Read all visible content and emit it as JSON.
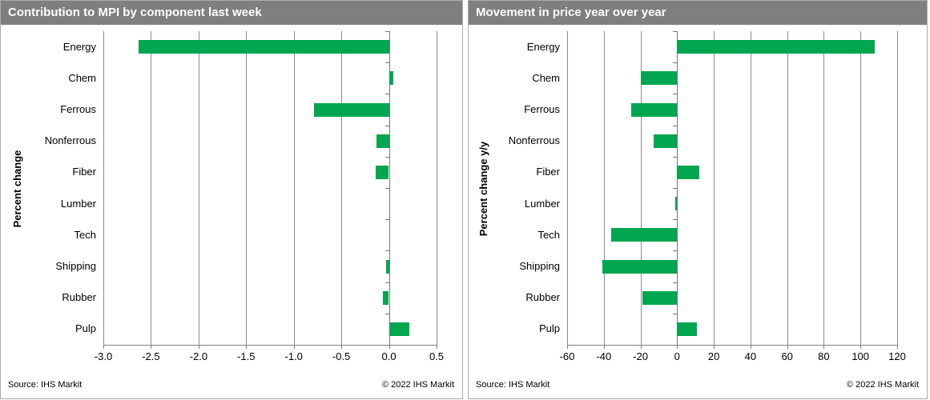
{
  "footer": {
    "source": "Source: IHS Markit",
    "copyright": "© 2022 IHS Markit"
  },
  "colors": {
    "bar_green": "#00A650",
    "header_bg": "#7F7F7F",
    "header_text": "#FFFFFF",
    "gridline": "#8C8C8C",
    "axis": "#808080",
    "panel_border": "#ABABAB"
  },
  "chart_data": [
    {
      "type": "bar",
      "orientation": "horizontal",
      "title": "Contribution to MPI by component last week",
      "categories": [
        "Energy",
        "Chem",
        "Ferrous",
        "Nonferrous",
        "Fiber",
        "Lumber",
        "Tech",
        "Shipping",
        "Rubber",
        "Pulp"
      ],
      "values": [
        -2.63,
        0.05,
        -0.79,
        -0.13,
        -0.14,
        0,
        0,
        -0.03,
        -0.06,
        0.21
      ],
      "xlabel": "",
      "ylabel": "Percent change",
      "xlim": [
        -3.0,
        0.5
      ],
      "xtick_labels": [
        "-3.0",
        "-2.5",
        "-2.0",
        "-1.5",
        "-1.0",
        "-0.5",
        "0.0",
        "0.5"
      ],
      "grid": true,
      "legend": "none",
      "bar_color": "#00A650"
    },
    {
      "type": "bar",
      "orientation": "horizontal",
      "title": "Movement in price year over year",
      "categories": [
        "Energy",
        "Chem",
        "Ferrous",
        "Nonferrous",
        "Fiber",
        "Lumber",
        "Tech",
        "Shipping",
        "Rubber",
        "Pulp"
      ],
      "values": [
        108,
        -20,
        -25,
        -13,
        12,
        -1,
        -36,
        -41,
        -19,
        11
      ],
      "xlabel": "",
      "ylabel": "Percent change y/y",
      "xlim": [
        -60,
        120
      ],
      "xtick_labels": [
        "-60",
        "-40",
        "-20",
        "0",
        "20",
        "40",
        "60",
        "80",
        "100",
        "120"
      ],
      "grid": true,
      "legend": "none",
      "bar_color": "#00A650"
    }
  ]
}
